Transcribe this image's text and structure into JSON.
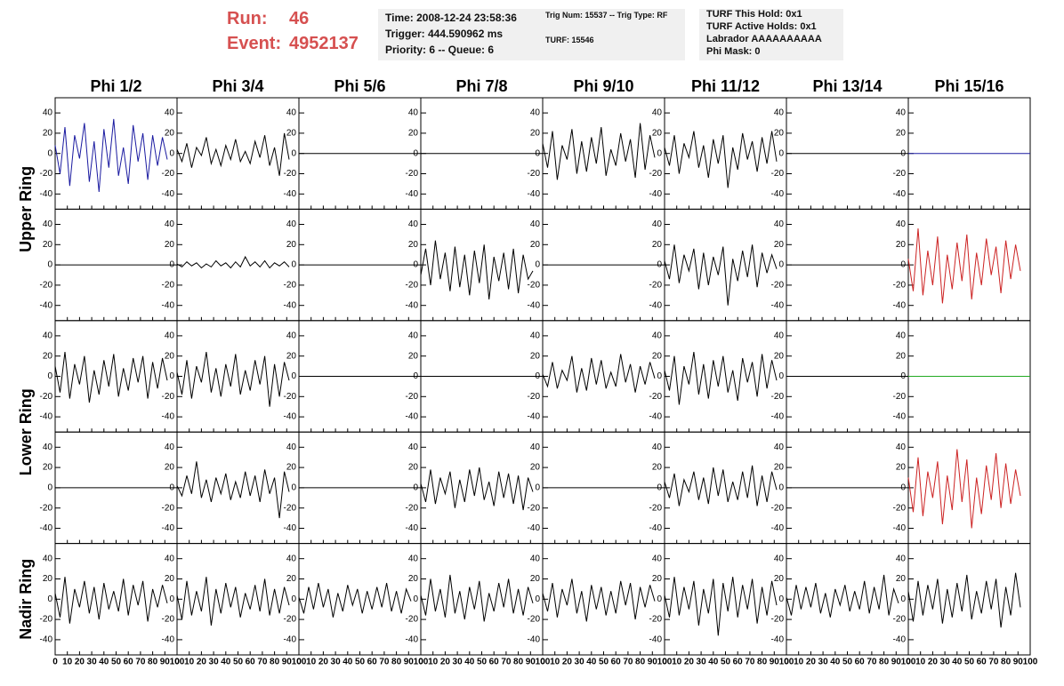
{
  "header": {
    "run_label": "Run:",
    "run": "46",
    "event_label": "Event:",
    "event": "4952137",
    "time": "Time: 2008-12-24 23:58:36",
    "trigger": "Trigger: 444.590962 ms",
    "priority": "Priority: 6 -- Queue: 6",
    "trig_num": "Trig Num: 15537 -- Trig Type: RF",
    "turf": "TURF: 15546",
    "turf_hold": "TURF This Hold: 0x1",
    "turf_active": "TURF Active Holds: 0x1",
    "labrador": "Labrador AAAAAAAAAA",
    "phi_mask": "Phi Mask: 0"
  },
  "chart_data": {
    "type": "line",
    "columns": [
      "Phi 1/2",
      "Phi 3/4",
      "Phi 5/6",
      "Phi 7/8",
      "Phi 9/10",
      "Phi 11/12",
      "Phi 13/14",
      "Phi 15/16"
    ],
    "row_labels": [
      "Upper Ring",
      "Lower Ring",
      "Nadir Ring"
    ],
    "xlim": [
      0,
      100
    ],
    "xticks": [
      0,
      10,
      20,
      30,
      40,
      50,
      60,
      70,
      80,
      90,
      100
    ],
    "ylim": [
      -55,
      55
    ],
    "yticks": [
      -40,
      -20,
      0,
      20,
      40
    ],
    "x": [
      0,
      4,
      8,
      12,
      16,
      20,
      24,
      28,
      32,
      36,
      40,
      44,
      48,
      52,
      56,
      60,
      64,
      68,
      72,
      76,
      80,
      84,
      88,
      92
    ],
    "panels": [
      [
        {
          "color": "#1a1aa0",
          "values": [
            8,
            -20,
            26,
            -32,
            18,
            -5,
            30,
            -28,
            12,
            -38,
            24,
            -14,
            34,
            -22,
            6,
            -30,
            28,
            -8,
            20,
            -26,
            18,
            -12,
            16,
            -6
          ]
        },
        {
          "color": "#000000",
          "values": [
            4,
            -8,
            10,
            -14,
            6,
            -2,
            16,
            -10,
            4,
            -12,
            8,
            -6,
            14,
            -8,
            2,
            -10,
            12,
            -4,
            18,
            -12,
            6,
            -22,
            20,
            -6
          ]
        },
        {
          "color": "#000000",
          "x": [
            0,
            100
          ],
          "values": [
            0,
            0
          ]
        },
        {
          "color": "#000000",
          "x": [
            0,
            100
          ],
          "values": [
            0,
            0
          ]
        },
        {
          "color": "#000000",
          "values": [
            10,
            -14,
            22,
            -26,
            8,
            -6,
            24,
            -20,
            12,
            -18,
            16,
            -10,
            26,
            -22,
            4,
            -12,
            20,
            -8,
            14,
            -24,
            30,
            -16,
            18,
            -4
          ]
        },
        {
          "color": "#000000",
          "values": [
            6,
            -12,
            18,
            -20,
            10,
            -4,
            22,
            -14,
            8,
            -24,
            14,
            -10,
            18,
            -34,
            6,
            -16,
            20,
            -6,
            12,
            -18,
            16,
            -10,
            22,
            -8
          ]
        },
        {
          "color": "#000000",
          "x": [
            0,
            100
          ],
          "values": [
            0,
            0
          ]
        },
        {
          "color": "#1a1aa0",
          "x": [
            0,
            100
          ],
          "values": [
            0,
            0
          ]
        }
      ],
      [
        {
          "color": "#000000",
          "x": [
            0,
            100
          ],
          "values": [
            0,
            0
          ]
        },
        {
          "color": "#000000",
          "values": [
            1,
            -2,
            3,
            -1,
            2,
            -3,
            1,
            -2,
            4,
            -1,
            2,
            -3,
            3,
            -2,
            8,
            -1,
            3,
            -2,
            4,
            -3,
            2,
            -1,
            3,
            -2
          ]
        },
        {
          "color": "#000000",
          "x": [
            0,
            100
          ],
          "values": [
            0,
            0
          ]
        },
        {
          "color": "#000000",
          "values": [
            -10,
            16,
            -20,
            24,
            -14,
            12,
            -26,
            18,
            -22,
            10,
            -30,
            14,
            -18,
            20,
            -34,
            8,
            -16,
            12,
            -24,
            16,
            -28,
            10,
            -14,
            -6
          ]
        },
        {
          "color": "#000000",
          "x": [
            0,
            100
          ],
          "values": [
            0,
            0
          ]
        },
        {
          "color": "#000000",
          "values": [
            4,
            -14,
            20,
            -18,
            10,
            -6,
            16,
            -24,
            12,
            -20,
            8,
            -10,
            18,
            -40,
            6,
            -16,
            14,
            -12,
            20,
            -22,
            12,
            -8,
            10,
            -4
          ]
        },
        {
          "color": "#000000",
          "x": [
            0,
            100
          ],
          "values": [
            0,
            0
          ]
        },
        {
          "color": "#cc2222",
          "values": [
            6,
            -26,
            36,
            -30,
            14,
            -20,
            28,
            -38,
            10,
            -24,
            22,
            -16,
            30,
            -34,
            12,
            -20,
            26,
            -10,
            18,
            -28,
            24,
            -14,
            20,
            -6
          ]
        }
      ],
      [
        {
          "color": "#000000",
          "values": [
            10,
            -16,
            24,
            -22,
            12,
            -8,
            20,
            -26,
            6,
            -18,
            16,
            -10,
            22,
            -20,
            8,
            -14,
            18,
            -6,
            20,
            -22,
            14,
            -12,
            18,
            -4
          ]
        },
        {
          "color": "#000000",
          "values": [
            4,
            -18,
            16,
            -22,
            10,
            -6,
            24,
            -16,
            8,
            -20,
            12,
            -10,
            22,
            -18,
            6,
            -14,
            16,
            -8,
            20,
            -30,
            12,
            -20,
            14,
            -4
          ]
        },
        {
          "color": "#000000",
          "x": [
            0,
            100
          ],
          "values": [
            0,
            0
          ]
        },
        {
          "color": "#000000",
          "x": [
            0,
            100
          ],
          "values": [
            0,
            0
          ]
        },
        {
          "color": "#000000",
          "values": [
            2,
            -10,
            14,
            -12,
            6,
            -4,
            20,
            -16,
            8,
            -14,
            18,
            -8,
            16,
            -12,
            4,
            -10,
            22,
            -6,
            12,
            -16,
            10,
            -8,
            14,
            -2
          ]
        },
        {
          "color": "#000000",
          "values": [
            6,
            -14,
            20,
            -28,
            10,
            -8,
            24,
            -18,
            12,
            -22,
            16,
            -10,
            20,
            -16,
            6,
            -24,
            18,
            -6,
            14,
            -20,
            22,
            -12,
            16,
            -4
          ]
        },
        {
          "color": "#000000",
          "x": [
            0,
            100
          ],
          "values": [
            0,
            0
          ]
        },
        {
          "color": "#22aa22",
          "x": [
            0,
            100
          ],
          "values": [
            0,
            0
          ]
        }
      ],
      [
        {
          "color": "#000000",
          "x": [
            0,
            100
          ],
          "values": [
            0,
            0
          ]
        },
        {
          "color": "#000000",
          "values": [
            2,
            -8,
            12,
            -6,
            26,
            -10,
            8,
            -14,
            10,
            -6,
            14,
            -12,
            6,
            -10,
            16,
            -8,
            12,
            -14,
            18,
            -6,
            10,
            -30,
            16,
            -4
          ]
        },
        {
          "color": "#000000",
          "x": [
            0,
            100
          ],
          "values": [
            0,
            0
          ]
        },
        {
          "color": "#000000",
          "values": [
            4,
            -14,
            18,
            -16,
            10,
            -6,
            16,
            -20,
            8,
            -14,
            18,
            -8,
            20,
            -12,
            6,
            -18,
            16,
            -10,
            14,
            -16,
            12,
            -22,
            10,
            -4
          ]
        },
        {
          "color": "#000000",
          "x": [
            0,
            100
          ],
          "values": [
            0,
            0
          ]
        },
        {
          "color": "#000000",
          "values": [
            6,
            -10,
            14,
            -18,
            8,
            -4,
            16,
            -12,
            10,
            -16,
            20,
            -8,
            18,
            -14,
            6,
            -12,
            16,
            -10,
            22,
            -18,
            12,
            -14,
            16,
            -2
          ]
        },
        {
          "color": "#000000",
          "x": [
            0,
            100
          ],
          "values": [
            0,
            0
          ]
        },
        {
          "color": "#cc2222",
          "values": [
            10,
            -24,
            30,
            -28,
            16,
            -10,
            26,
            -36,
            12,
            -22,
            38,
            -14,
            28,
            -40,
            10,
            -26,
            22,
            -12,
            34,
            -20,
            24,
            -16,
            18,
            -8
          ]
        }
      ],
      [
        {
          "color": "#000000",
          "values": [
            6,
            -18,
            22,
            -24,
            10,
            -8,
            18,
            -14,
            12,
            -20,
            16,
            -10,
            8,
            -12,
            20,
            -16,
            14,
            -6,
            18,
            -22,
            10,
            -8,
            14,
            -4
          ]
        },
        {
          "color": "#000000",
          "values": [
            4,
            -20,
            18,
            -16,
            8,
            -12,
            22,
            -26,
            10,
            -14,
            16,
            -8,
            12,
            -18,
            6,
            -10,
            14,
            -12,
            20,
            -16,
            10,
            -14,
            12,
            -6
          ]
        },
        {
          "color": "#000000",
          "values": [
            2,
            -14,
            12,
            -10,
            16,
            -8,
            10,
            -18,
            6,
            -12,
            14,
            -6,
            10,
            -14,
            8,
            -10,
            12,
            -8,
            16,
            -12,
            8,
            -14,
            10,
            -2
          ]
        },
        {
          "color": "#000000",
          "values": [
            4,
            -16,
            20,
            -12,
            10,
            -18,
            24,
            -14,
            8,
            -20,
            12,
            -10,
            18,
            -22,
            6,
            -12,
            16,
            -8,
            20,
            -14,
            10,
            -16,
            12,
            -4
          ]
        },
        {
          "color": "#000000",
          "values": [
            6,
            -12,
            16,
            -18,
            10,
            -6,
            20,
            -14,
            8,
            -22,
            14,
            -10,
            12,
            -16,
            8,
            -14,
            18,
            -6,
            16,
            -20,
            12,
            -8,
            14,
            -2
          ]
        },
        {
          "color": "#000000",
          "values": [
            4,
            -18,
            22,
            -16,
            12,
            -10,
            18,
            -26,
            10,
            -14,
            20,
            -36,
            16,
            -12,
            22,
            -18,
            14,
            -10,
            20,
            -24,
            12,
            -16,
            18,
            -6
          ]
        },
        {
          "color": "#000000",
          "values": [
            2,
            -16,
            14,
            -10,
            12,
            -8,
            16,
            -14,
            6,
            -18,
            10,
            -6,
            14,
            -12,
            8,
            -10,
            18,
            -14,
            12,
            -10,
            24,
            -16,
            10,
            -4
          ]
        },
        {
          "color": "#000000",
          "values": [
            8,
            -22,
            18,
            -16,
            14,
            -10,
            20,
            -24,
            10,
            -18,
            16,
            -12,
            24,
            -20,
            8,
            -14,
            18,
            -10,
            20,
            -28,
            12,
            -16,
            26,
            -8
          ]
        }
      ]
    ]
  }
}
